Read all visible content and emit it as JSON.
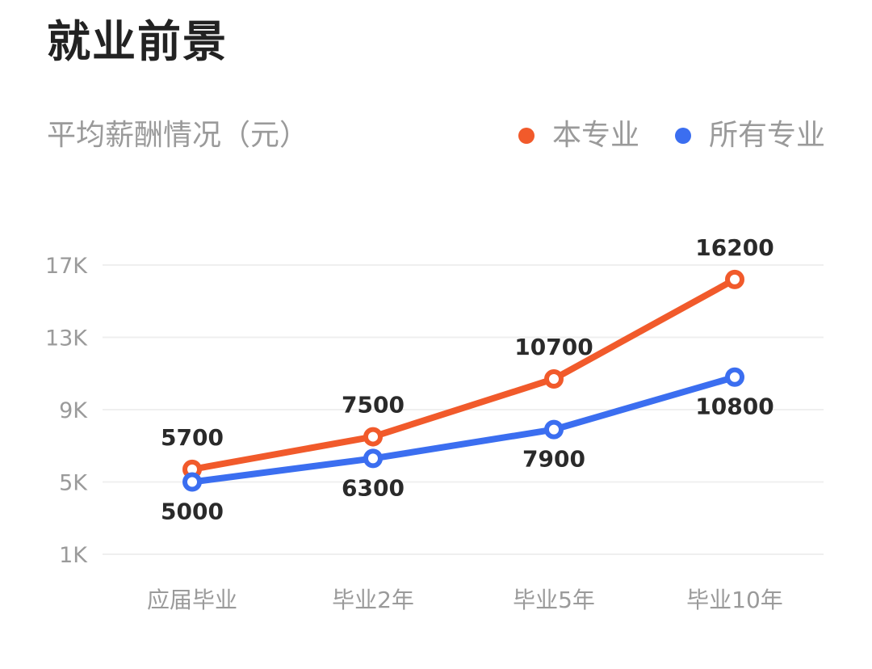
{
  "header": {
    "title": "就业前景",
    "subtitle": "平均薪酬情况（元）"
  },
  "legend": [
    {
      "label": "本专业",
      "color": "#f15a2b"
    },
    {
      "label": "所有专业",
      "color": "#3b6ef0"
    }
  ],
  "chart_data": {
    "type": "line",
    "title": "平均薪酬情况（元）",
    "xlabel": "",
    "ylabel": "",
    "categories": [
      "应届毕业",
      "毕业2年",
      "毕业5年",
      "毕业10年"
    ],
    "series": [
      {
        "name": "本专业",
        "color": "#f15a2b",
        "values": [
          5700,
          7500,
          10700,
          16200
        ]
      },
      {
        "name": "所有专业",
        "color": "#3b6ef0",
        "values": [
          5000,
          6300,
          7900,
          10800
        ]
      }
    ],
    "yticks": [
      "1K",
      "5K",
      "9K",
      "13K",
      "17K"
    ],
    "ytick_values": [
      1000,
      5000,
      9000,
      13000,
      17000
    ],
    "ylim": [
      1000,
      17000
    ],
    "grid": true,
    "legend_position": "top-right"
  }
}
